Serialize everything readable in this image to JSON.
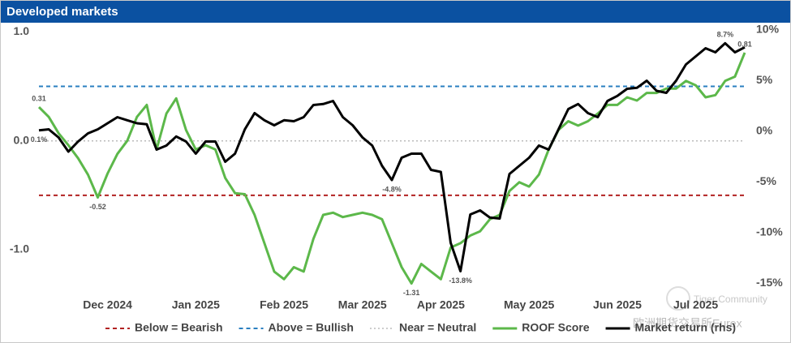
{
  "chart_data": {
    "type": "line",
    "title": "Developed markets",
    "categories": [
      null,
      null,
      null,
      null,
      null,
      null,
      null,
      "Dec 2024",
      null,
      null,
      null,
      null,
      null,
      null,
      null,
      null,
      "Jan 2025",
      null,
      null,
      null,
      null,
      null,
      null,
      null,
      null,
      "Feb 2025",
      null,
      null,
      null,
      null,
      null,
      null,
      null,
      "Mar 2025",
      null,
      null,
      null,
      null,
      null,
      null,
      null,
      "Apr 2025",
      null,
      null,
      null,
      null,
      null,
      null,
      null,
      null,
      "May 2025",
      null,
      null,
      null,
      null,
      null,
      null,
      null,
      null,
      "Jun 2025",
      null,
      null,
      null,
      null,
      null,
      null,
      null,
      "Jul 2025",
      null,
      null,
      null,
      null,
      null
    ],
    "series": [
      {
        "name": "ROOF Score",
        "color": "#5cb84a",
        "values": [
          0.31,
          0.22,
          0.07,
          -0.04,
          -0.16,
          -0.31,
          -0.52,
          -0.3,
          -0.12,
          0,
          0.22,
          0.33,
          -0.08,
          0.25,
          0.39,
          0.1,
          -0.08,
          -0.04,
          -0.08,
          -0.34,
          -0.48,
          -0.49,
          -0.68,
          -0.94,
          -1.2,
          -1.27,
          -1.16,
          -1.2,
          -0.9,
          -0.68,
          -0.66,
          -0.7,
          -0.68,
          -0.66,
          -0.68,
          -0.72,
          -0.94,
          -1.16,
          -1.31,
          -1.13,
          -1.2,
          -1.27,
          -0.98,
          -0.94,
          -0.87,
          -0.83,
          -0.72,
          -0.68,
          -0.46,
          -0.38,
          -0.42,
          -0.31,
          -0.08,
          0.1,
          0.18,
          0.14,
          0.18,
          0.25,
          0.33,
          0.33,
          0.4,
          0.37,
          0.44,
          0.44,
          0.48,
          0.48,
          0.55,
          0.51,
          0.4,
          0.42,
          0.55,
          0.59,
          0.81
        ],
        "value_labels": [
          "0.31",
          null,
          null,
          null,
          null,
          null,
          "-0.52",
          null,
          null,
          null,
          null,
          null,
          null,
          null,
          null,
          null,
          null,
          null,
          null,
          null,
          null,
          null,
          null,
          null,
          null,
          null,
          null,
          null,
          null,
          null,
          null,
          null,
          null,
          null,
          null,
          null,
          null,
          null,
          "-1.31",
          null,
          null,
          null,
          null,
          null,
          null,
          null,
          null,
          null,
          null,
          null,
          null,
          null,
          null,
          null,
          null,
          null,
          null,
          null,
          null,
          null,
          null,
          null,
          null,
          null,
          null,
          null,
          null,
          null,
          null,
          null,
          null,
          null,
          "0.81"
        ]
      },
      {
        "name": "Market return (rhs)",
        "color": "#000000",
        "axis": "y2",
        "values": [
          0.1,
          0.2,
          -0.6,
          -2.0,
          -1.0,
          -0.2,
          0.2,
          0.8,
          1.4,
          1.1,
          0.8,
          0.7,
          -1.8,
          -1.4,
          -0.5,
          -1.0,
          -2.2,
          -1.0,
          -1.0,
          -3.0,
          -2.2,
          0.2,
          1.8,
          1.1,
          0.6,
          1.1,
          1.0,
          1.4,
          2.6,
          2.7,
          3.0,
          1.4,
          0.6,
          -0.6,
          -1.4,
          -3.4,
          -4.8,
          -2.6,
          -2.2,
          -2.2,
          -3.8,
          -4.0,
          -11.0,
          -13.8,
          -8.2,
          -7.8,
          -8.5,
          -8.6,
          -4.2,
          -3.4,
          -2.6,
          -1.4,
          -1.8,
          0.2,
          2.2,
          2.7,
          1.8,
          1.4,
          3.0,
          3.5,
          4.2,
          4.3,
          5.0,
          4.0,
          3.8,
          5.0,
          6.6,
          7.4,
          8.2,
          7.8,
          8.7,
          7.8,
          8.3
        ],
        "value_labels": [
          "0.1%",
          null,
          null,
          null,
          null,
          null,
          null,
          null,
          null,
          null,
          null,
          null,
          null,
          null,
          null,
          null,
          null,
          null,
          null,
          null,
          null,
          null,
          null,
          null,
          null,
          null,
          null,
          null,
          null,
          null,
          null,
          null,
          null,
          null,
          null,
          null,
          "-4.8%",
          null,
          null,
          null,
          null,
          null,
          null,
          "-13.8%",
          null,
          null,
          null,
          null,
          null,
          null,
          null,
          null,
          null,
          null,
          null,
          null,
          null,
          null,
          null,
          null,
          null,
          null,
          null,
          null,
          null,
          null,
          null,
          null,
          null,
          null,
          "8.7%",
          null,
          null
        ]
      }
    ],
    "reference_lines": [
      {
        "name": "Below = Bearish",
        "value": -0.5,
        "color": "#b22222",
        "style": "dashed"
      },
      {
        "name": "Above = Bullish",
        "value": 0.5,
        "color": "#2a7fc0",
        "style": "dashed"
      },
      {
        "name": "Near = Neutral",
        "value": 0,
        "color": "#bbbbbb",
        "style": "dotted"
      }
    ],
    "ylim": [
      -1.35,
      1.07
    ],
    "yticks": [
      {
        "value": -1,
        "label": "-1.0"
      },
      {
        "value": 0,
        "label": "0.0"
      },
      {
        "value": 1,
        "label": "1.0"
      }
    ],
    "y2lim": [
      -15.44,
      10.56
    ],
    "y2ticks": [
      {
        "value": -15,
        "label": "-15%"
      },
      {
        "value": -10,
        "label": "-10%"
      },
      {
        "value": -5,
        "label": "-5%"
      },
      {
        "value": 0,
        "label": "0%"
      },
      {
        "value": 5,
        "label": "5%"
      },
      {
        "value": 10,
        "label": "10%"
      }
    ],
    "legend": "bottom",
    "watermark": [
      "Tiger Community",
      "欧洲期货交易所Eurex"
    ]
  }
}
